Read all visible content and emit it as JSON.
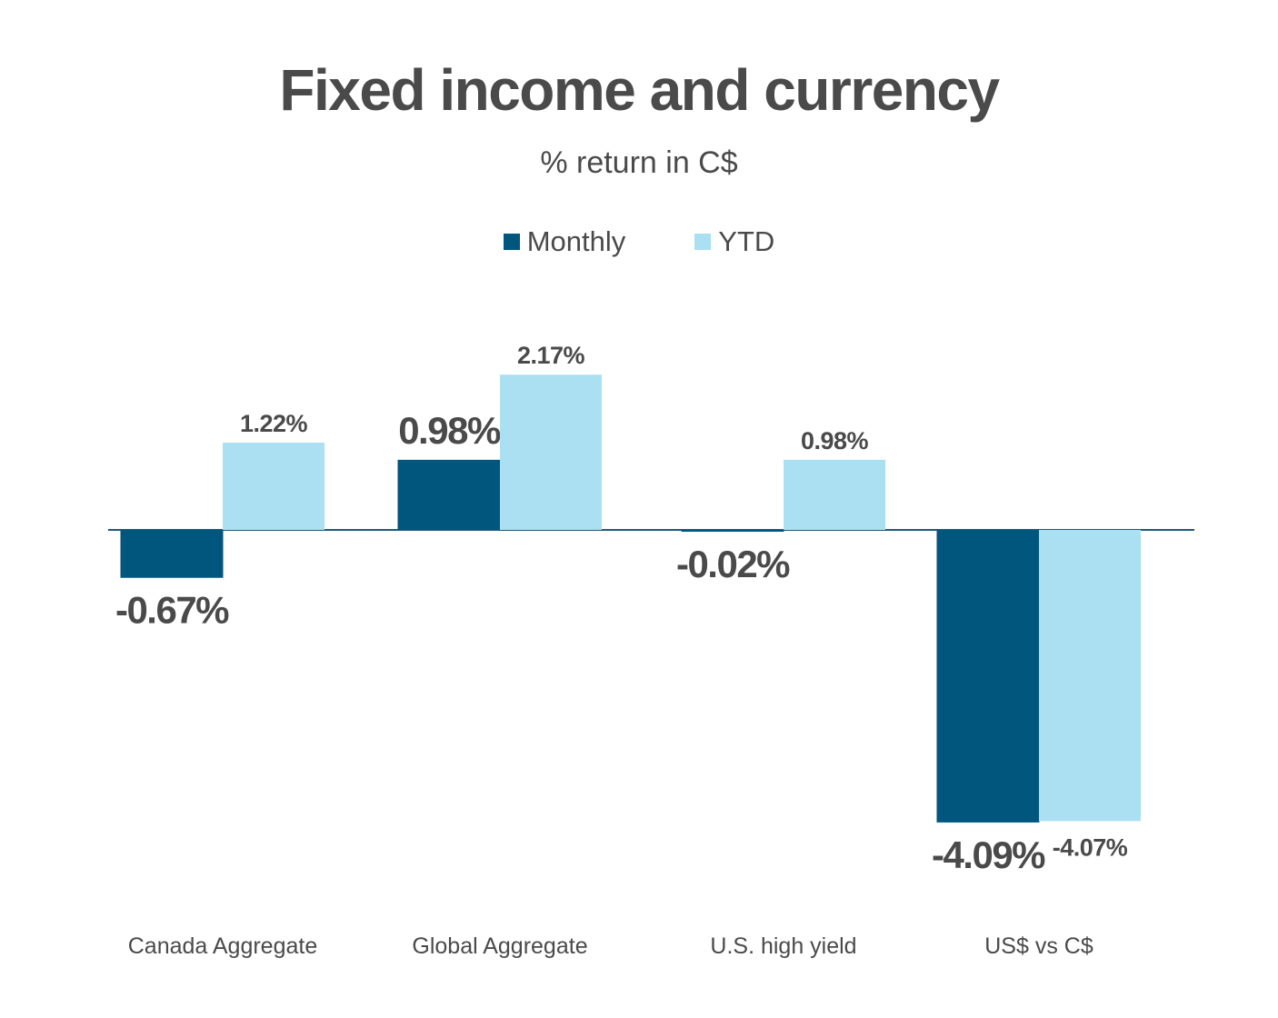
{
  "chart_data": {
    "type": "bar",
    "title": "Fixed income and currency",
    "subtitle": "% return in C$",
    "categories": [
      "Canada Aggregate",
      "Global Aggregate",
      "U.S. high yield",
      "US$ vs C$"
    ],
    "series": [
      {
        "name": "Monthly",
        "color": "#00567d",
        "values": [
          -0.67,
          0.98,
          -0.02,
          -4.09
        ],
        "labels": [
          "-0.67%",
          "0.98%",
          "-0.02%",
          "-4.09%"
        ]
      },
      {
        "name": "YTD",
        "color": "#abdff2",
        "values": [
          1.22,
          2.17,
          0.98,
          -4.07
        ],
        "labels": [
          "1.22%",
          "2.17%",
          "0.98%",
          "-4.07%"
        ]
      }
    ],
    "legend_position": "top",
    "grid": false
  }
}
